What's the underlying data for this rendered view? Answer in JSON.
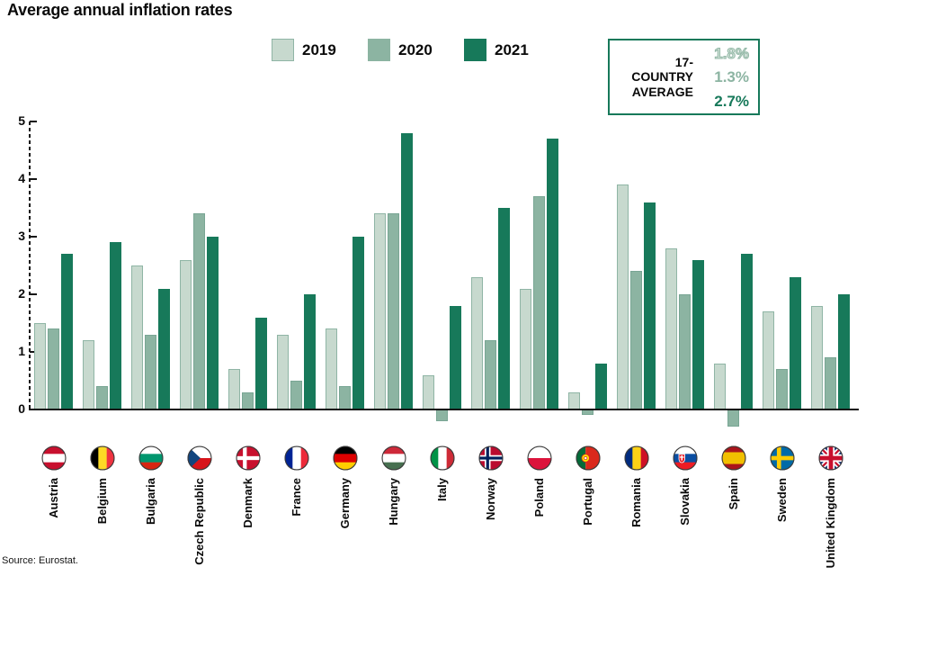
{
  "title": "Average annual inflation rates",
  "source": "Source: Eurostat.",
  "average_box": {
    "label_line1": "17-COUNTRY",
    "label_line2": "AVERAGE",
    "values": [
      "1.8%",
      "1.3%",
      "2.7%"
    ]
  },
  "colors": {
    "series_2019_fill": "#c7d9ce",
    "series_2019_border": "#8fb5a5",
    "series_2020_fill": "#8cb4a2",
    "series_2021_fill": "#17795a",
    "axis": "#141414"
  },
  "chart_data": {
    "type": "bar",
    "title": "Average annual inflation rates",
    "xlabel": "",
    "ylabel": "",
    "ylim": [
      -0.5,
      5
    ],
    "yticks": [
      0,
      1,
      2,
      3,
      4,
      5
    ],
    "grid": false,
    "legend_position": "top",
    "categories": [
      "Austria",
      "Belgium",
      "Bulgaria",
      "Czech Republic",
      "Denmark",
      "France",
      "Germany",
      "Hungary",
      "Italy",
      "Norway",
      "Poland",
      "Portugal",
      "Romania",
      "Slovakia",
      "Spain",
      "Sweden",
      "United Kingdom"
    ],
    "flag_icons": [
      "austria",
      "belgium",
      "bulgaria",
      "czech-republic",
      "denmark",
      "france",
      "germany",
      "hungary",
      "italy",
      "norway",
      "poland",
      "portugal",
      "romania",
      "slovakia",
      "spain",
      "sweden",
      "united-kingdom"
    ],
    "flag_codes": [
      "at",
      "be",
      "bg",
      "cz",
      "dk",
      "fr",
      "de",
      "hu",
      "it",
      "no",
      "pl",
      "pt",
      "ro",
      "sk",
      "es",
      "se",
      "gb"
    ],
    "series": [
      {
        "name": "2019",
        "color": "#c7d9ce",
        "values": [
          1.5,
          1.2,
          2.5,
          2.6,
          0.7,
          1.3,
          1.4,
          3.4,
          0.6,
          2.3,
          2.1,
          0.3,
          3.9,
          2.8,
          0.8,
          1.7,
          1.8
        ]
      },
      {
        "name": "2020",
        "color": "#8cb4a2",
        "values": [
          1.4,
          0.4,
          1.3,
          3.4,
          0.3,
          0.5,
          0.4,
          3.4,
          -0.2,
          1.2,
          3.7,
          -0.1,
          2.4,
          2.0,
          -0.3,
          0.7,
          0.9
        ]
      },
      {
        "name": "2021",
        "color": "#17795a",
        "values": [
          2.7,
          2.9,
          2.1,
          3.0,
          1.6,
          2.0,
          3.0,
          4.8,
          1.8,
          3.5,
          4.7,
          0.8,
          3.6,
          2.6,
          2.7,
          2.3,
          2.0
        ]
      }
    ]
  }
}
